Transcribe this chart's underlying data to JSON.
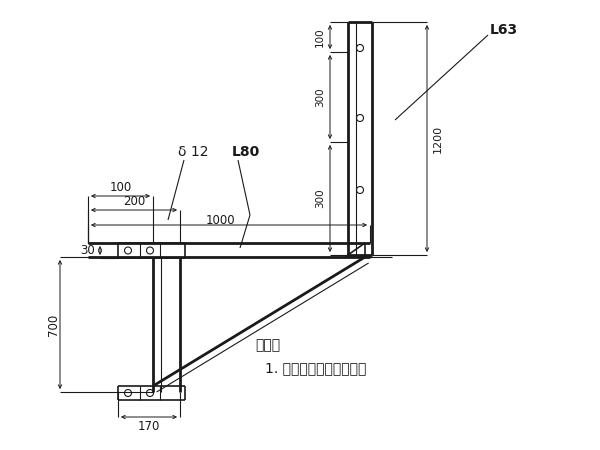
{
  "line_color": "#1a1a1a",
  "note_text1": "说明：",
  "note_text2": "1. 图中尺寸均以毫米计。",
  "label_d12": "δ 12",
  "label_L80": "L80",
  "label_L63": "L63",
  "label_1000": "1000",
  "label_200": "200",
  "label_100h": "100",
  "label_30": "30",
  "label_700": "700",
  "label_170": "170",
  "label_300a": "300",
  "label_300b": "300",
  "label_100v": "100",
  "label_1200": "1200"
}
